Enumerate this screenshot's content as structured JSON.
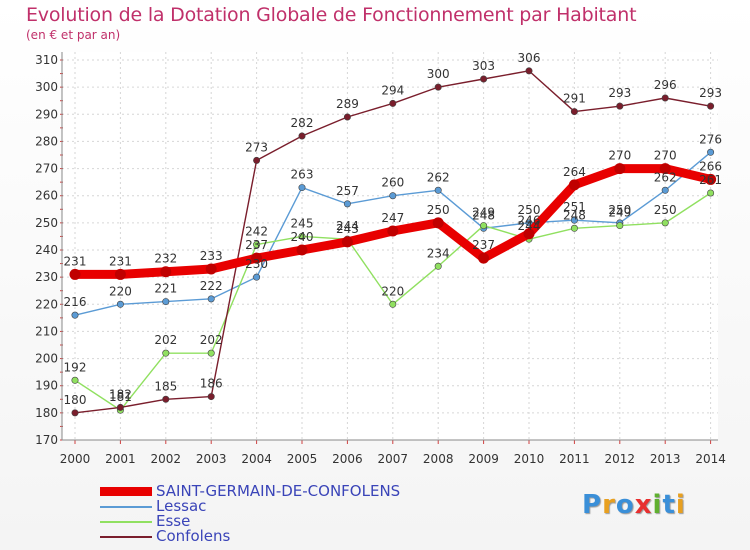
{
  "chart_data": {
    "type": "line",
    "title": "Evolution de la Dotation Globale de Fonctionnement par Habitant",
    "subtitle": "(en € et par an)",
    "xlabel": "",
    "ylabel": "",
    "x": [
      "2000",
      "2001",
      "2002",
      "2003",
      "2004",
      "2005",
      "2006",
      "2007",
      "2008",
      "2009",
      "2010",
      "2011",
      "2012",
      "2013",
      "2014"
    ],
    "ylim": [
      170,
      310
    ],
    "yticks": [
      170,
      180,
      190,
      200,
      210,
      220,
      230,
      240,
      250,
      260,
      270,
      280,
      290,
      300,
      310
    ],
    "grid": true,
    "series": [
      {
        "name": "SAINT-GERMAIN-DE-CONFOLENS",
        "color": "#e80000",
        "values": [
          231,
          231,
          232,
          233,
          237,
          240,
          243,
          247,
          250,
          237,
          246,
          264,
          270,
          270,
          266
        ]
      },
      {
        "name": "Lessac",
        "color": "#5b9bd5",
        "values": [
          216,
          220,
          221,
          222,
          230,
          263,
          257,
          260,
          262,
          248,
          250,
          251,
          250,
          262,
          276
        ]
      },
      {
        "name": "Esse",
        "color": "#90e060",
        "values": [
          192,
          181,
          202,
          202,
          242,
          245,
          244,
          220,
          234,
          249,
          244,
          248,
          249,
          250,
          261
        ]
      },
      {
        "name": "Confolens",
        "color": "#7a1e2c",
        "values": [
          180,
          182,
          185,
          186,
          273,
          282,
          289,
          294,
          300,
          303,
          306,
          291,
          293,
          296,
          293
        ]
      }
    ]
  },
  "logo": {
    "text": "Proxiti",
    "letters": [
      "P",
      "r",
      "o",
      "x",
      "i",
      "t",
      "i"
    ],
    "colors": [
      "#3a8fd8",
      "#e8a020",
      "#3a8fd8",
      "#e83030",
      "#60b030",
      "#3a8fd8",
      "#e8a020"
    ]
  }
}
